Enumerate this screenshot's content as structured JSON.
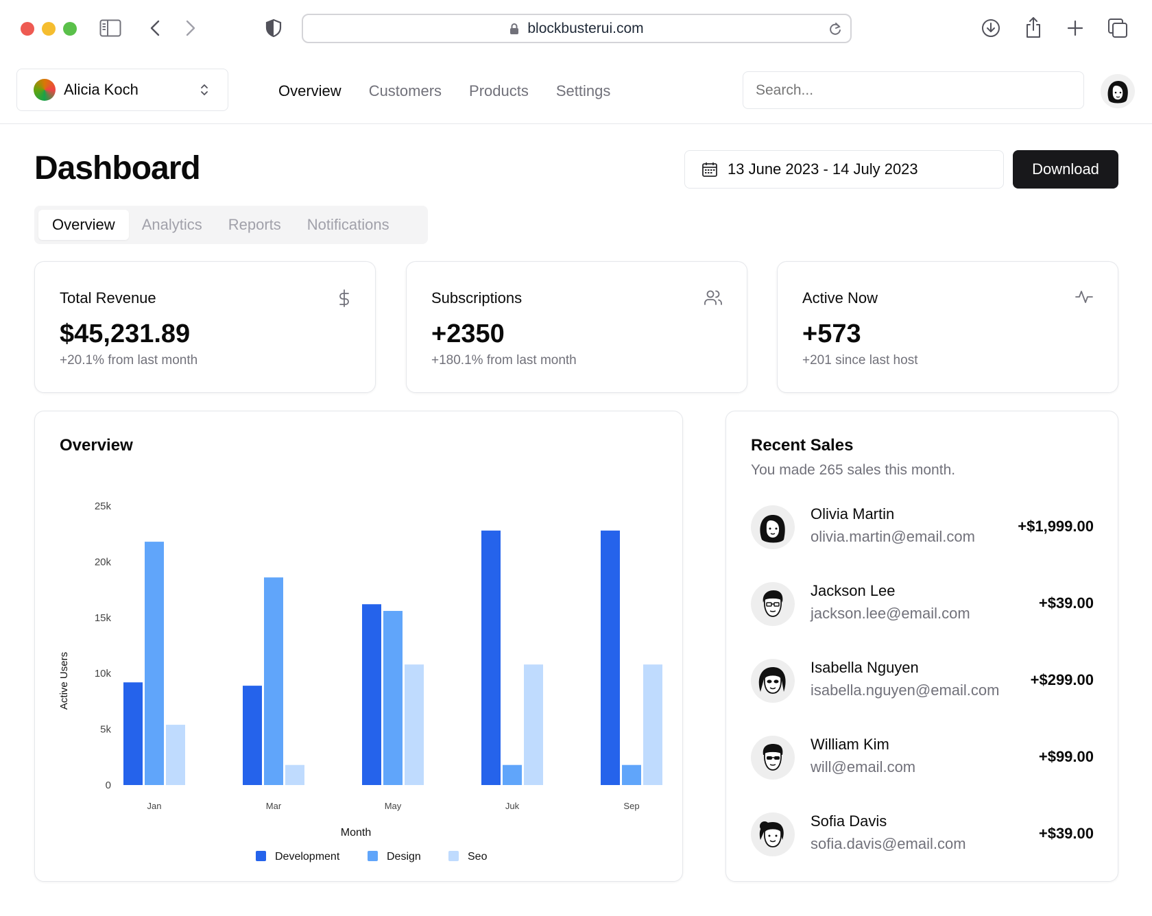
{
  "browser": {
    "url": "blockbusterui.com"
  },
  "header": {
    "team_name": "Alicia Koch",
    "nav": [
      "Overview",
      "Customers",
      "Products",
      "Settings"
    ],
    "search_placeholder": "Search..."
  },
  "dashboard": {
    "title": "Dashboard",
    "date_range": "13 June 2023 - 14 July 2023",
    "download_label": "Download",
    "tabs": [
      "Overview",
      "Analytics",
      "Reports",
      "Notifications"
    ]
  },
  "stats": [
    {
      "label": "Total Revenue",
      "value": "$45,231.89",
      "sub": "+20.1% from last month",
      "icon": "dollar-icon"
    },
    {
      "label": "Subscriptions",
      "value": "+2350",
      "sub": "+180.1% from last month",
      "icon": "users-icon"
    },
    {
      "label": "Active Now",
      "value": "+573",
      "sub": "+201 since last host",
      "icon": "activity-icon"
    }
  ],
  "overview": {
    "title": "Overview"
  },
  "chart_data": {
    "type": "bar",
    "categories": [
      "Jan",
      "Mar",
      "May",
      "Juk",
      "Sep"
    ],
    "series": [
      {
        "name": "Development",
        "color": "#2563eb",
        "values": [
          9200,
          8900,
          16200,
          22800,
          22800
        ]
      },
      {
        "name": "Design",
        "color": "#60a5fa",
        "values": [
          21800,
          18600,
          15600,
          1800,
          1800
        ]
      },
      {
        "name": "Seo",
        "color": "#bfdbfe",
        "values": [
          5400,
          1800,
          10800,
          10800,
          10800
        ]
      }
    ],
    "xlabel": "Month",
    "ylabel": "Active Users",
    "ylim": [
      0,
      25000
    ],
    "yticks": [
      "0",
      "5k",
      "10k",
      "15k",
      "20k",
      "25k"
    ],
    "grid": false,
    "legend": "bottom-center"
  },
  "recent_sales": {
    "title": "Recent Sales",
    "subtitle": "You made 265 sales this month.",
    "items": [
      {
        "name": "Olivia Martin",
        "email": "olivia.martin@email.com",
        "amount": "+$1,999.00"
      },
      {
        "name": "Jackson Lee",
        "email": "jackson.lee@email.com",
        "amount": "+$39.00"
      },
      {
        "name": "Isabella Nguyen",
        "email": "isabella.nguyen@email.com",
        "amount": "+$299.00"
      },
      {
        "name": "William Kim",
        "email": "will@email.com",
        "amount": "+$99.00"
      },
      {
        "name": "Sofia Davis",
        "email": "sofia.davis@email.com",
        "amount": "+$39.00"
      }
    ]
  }
}
